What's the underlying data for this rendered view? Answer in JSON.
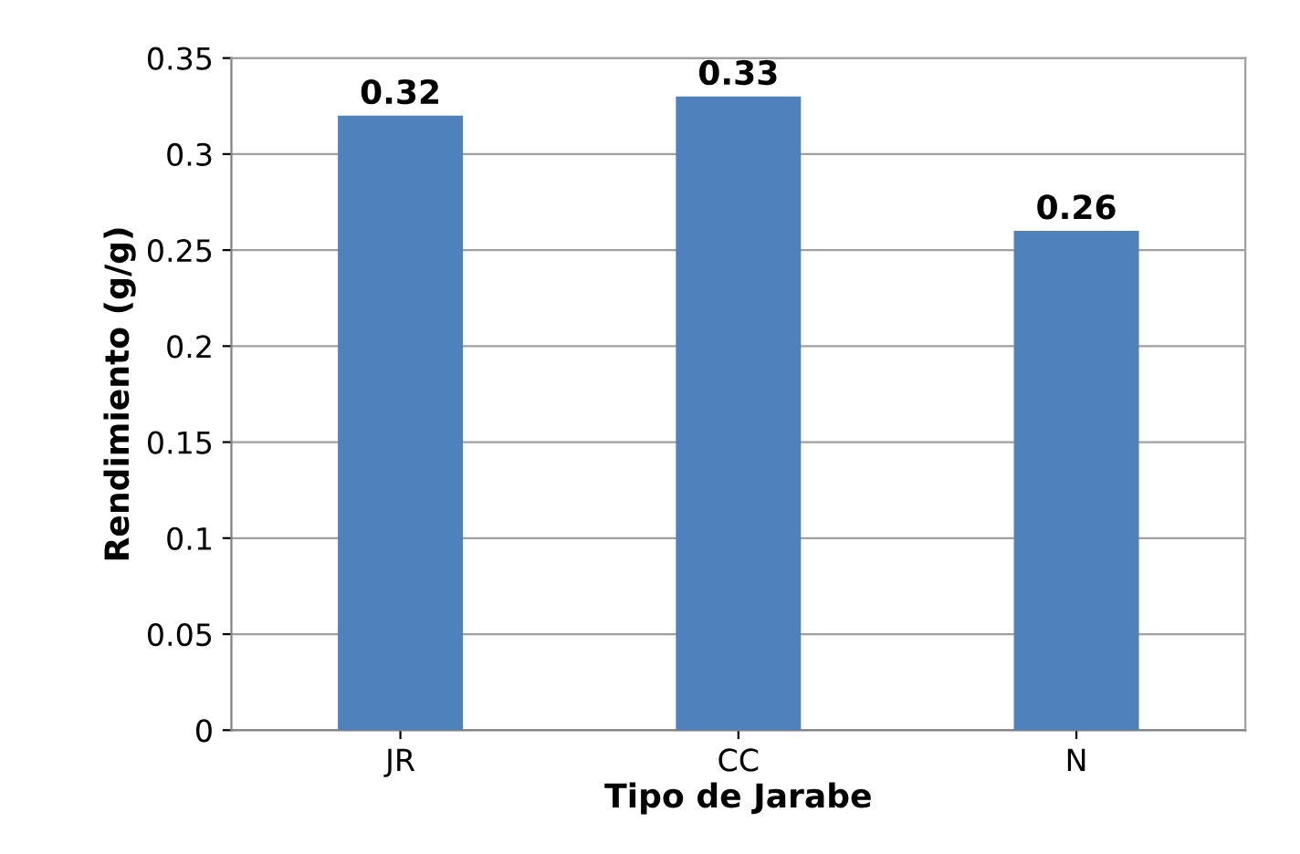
{
  "chart_data": {
    "type": "bar",
    "xlabel": "Tipo de Jarabe",
    "ylabel": "Rendimiento (g/g)",
    "categories": [
      "JR",
      "CC",
      "N"
    ],
    "values": [
      0.32,
      0.33,
      0.26
    ],
    "color": "#4f81bd",
    "ylim": [
      0,
      0.35
    ],
    "yticks": [
      {
        "value": 0,
        "label": "0"
      },
      {
        "value": 0.05,
        "label": "0.05"
      },
      {
        "value": 0.1,
        "label": "0.1"
      },
      {
        "value": 0.15,
        "label": "0.15"
      },
      {
        "value": 0.2,
        "label": "0.2"
      },
      {
        "value": 0.25,
        "label": "0.25"
      },
      {
        "value": 0.3,
        "label": "0.3"
      },
      {
        "value": 0.35,
        "label": "0.35"
      }
    ],
    "grid": "y",
    "data_labels": true,
    "legend": false
  }
}
